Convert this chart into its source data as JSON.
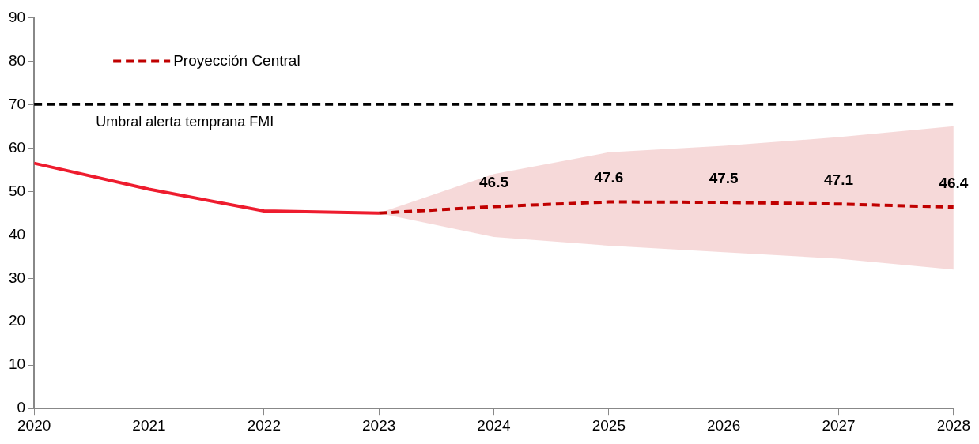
{
  "chart_data": {
    "type": "line",
    "xlim": [
      2020,
      2028
    ],
    "xticks": [
      2020,
      2021,
      2022,
      2023,
      2024,
      2025,
      2026,
      2027,
      2028
    ],
    "ylim": [
      0,
      90
    ],
    "yticks": [
      0,
      10,
      20,
      30,
      40,
      50,
      60,
      70,
      80,
      90
    ],
    "grid": false,
    "legend": "top left",
    "series": [
      {
        "color": "#ee1c2e",
        "x": [
          2020,
          2021,
          2022,
          2023
        ],
        "values": [
          56.5,
          50.5,
          45.5,
          45
        ],
        "line_style": "solid"
      },
      {
        "name": "Proyección Central",
        "color": "#c00000",
        "x": [
          2023,
          2024,
          2025,
          2026,
          2027,
          2028
        ],
        "values": [
          45,
          46.5,
          47.6,
          47.5,
          47.1,
          46.4
        ],
        "lower": [
          45,
          39.5,
          37.5,
          36,
          34.5,
          32
        ],
        "upper": [
          45,
          54,
          59,
          60.5,
          62.5,
          65
        ],
        "line_style": "dashed",
        "value_labels": [
          null,
          "46.5",
          "47.6",
          "47.5",
          "47.1",
          "46.4"
        ]
      }
    ],
    "ref_lines": [
      {
        "axis": "y",
        "value": 70,
        "label": "Umbral alerta temprana FMI",
        "color": "#000000",
        "line_style": "dashed"
      }
    ],
    "marker": "none"
  }
}
